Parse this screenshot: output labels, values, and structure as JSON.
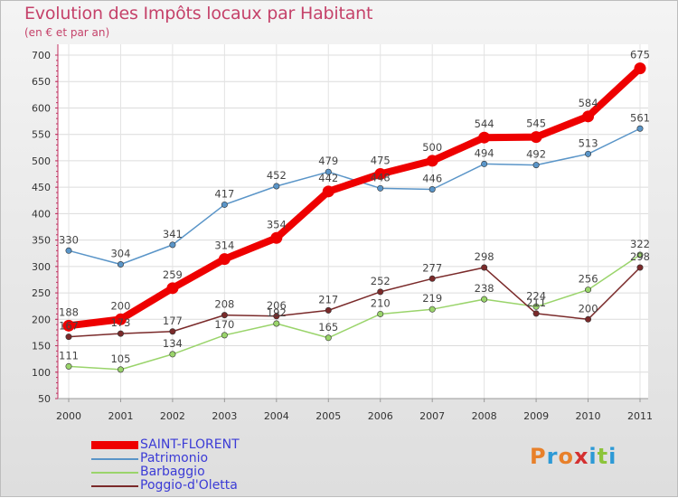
{
  "title": "Evolution des Impôts locaux par Habitant",
  "subtitle": "(en € et par an)",
  "logo": "Proxiti",
  "chart_data": {
    "type": "line",
    "x": [
      "2000",
      "2001",
      "2002",
      "2003",
      "2004",
      "2005",
      "2006",
      "2007",
      "2008",
      "2009",
      "2010",
      "2011"
    ],
    "ylim": [
      50,
      700
    ],
    "yticks": [
      50,
      100,
      150,
      200,
      250,
      300,
      350,
      400,
      450,
      500,
      550,
      600,
      650,
      700
    ],
    "grid": true,
    "legend_position": "bottom-left",
    "series": [
      {
        "name": "SAINT-FLORENT",
        "color": "#ee0000",
        "bold": true,
        "values": [
          188,
          200,
          259,
          314,
          354,
          442,
          475,
          500,
          544,
          545,
          584,
          675
        ]
      },
      {
        "name": "Patrimonio",
        "color": "#5a95c8",
        "values": [
          330,
          304,
          341,
          417,
          452,
          479,
          448,
          446,
          494,
          492,
          513,
          561
        ]
      },
      {
        "name": "Barbaggio",
        "color": "#9ad46b",
        "values": [
          111,
          105,
          134,
          170,
          192,
          165,
          210,
          219,
          238,
          224,
          256,
          322
        ]
      },
      {
        "name": "Poggio-d'Oletta",
        "color": "#7a2a2a",
        "values": [
          167,
          173,
          177,
          208,
          206,
          217,
          252,
          277,
          298,
          211,
          200,
          298
        ]
      }
    ]
  }
}
